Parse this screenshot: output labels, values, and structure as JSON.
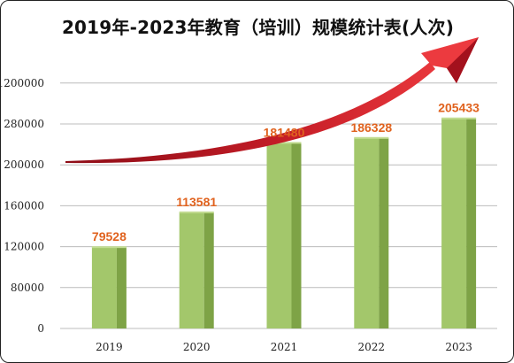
{
  "chart_data": {
    "type": "bar",
    "title": "2019年-2023年教育（培训）规模统计表(人次)",
    "categories": [
      "2019",
      "2020",
      "2021",
      "2022",
      "2023"
    ],
    "values": [
      79528,
      113581,
      181480,
      186328,
      205433
    ],
    "y_tick_labels": [
      "0",
      "80000",
      "120000",
      "160000",
      "200000",
      "280000",
      "1200000"
    ],
    "xlabel": "",
    "ylabel": "",
    "grid": true,
    "legend": "none",
    "annotation": "upward-trend-arrow"
  },
  "colors": {
    "bar_front": "#a3c76b",
    "bar_side": "#7ea346",
    "bar_top": "#c3dc93",
    "value_label": "#e0621e",
    "grid": "#bcbcbc",
    "arrow_dark": "#a3111d",
    "arrow_light": "#ec3a3f"
  }
}
